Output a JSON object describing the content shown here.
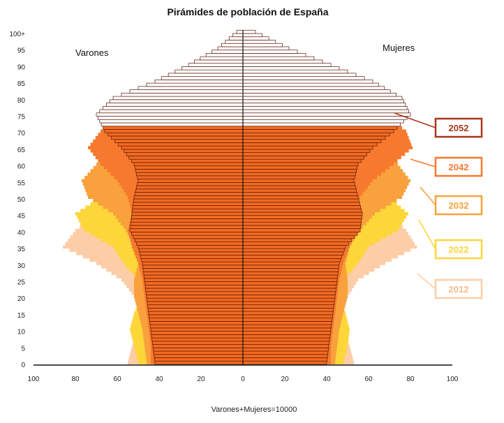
{
  "chart_data": {
    "type": "bar",
    "orientation": "horizontal-population-pyramid",
    "title": "Pirámides de población de España",
    "left_label": "Varones",
    "right_label": "Mujeres",
    "xlabel": "Varones+Mujeres=10000",
    "xlim": [
      -100,
      100
    ],
    "ylim": [
      0,
      100
    ],
    "x_ticks": [
      -100,
      -80,
      -60,
      -40,
      -20,
      0,
      20,
      40,
      60,
      80,
      100
    ],
    "x_tick_labels": [
      "100",
      "80",
      "60",
      "40",
      "20",
      "0",
      "20",
      "40",
      "60",
      "80",
      "100"
    ],
    "y_ticks": [
      0,
      5,
      10,
      15,
      20,
      25,
      30,
      35,
      40,
      45,
      50,
      55,
      60,
      65,
      70,
      75,
      80,
      85,
      90,
      95,
      100
    ],
    "y_tick_labels": [
      "0",
      "5",
      "10",
      "15",
      "20",
      "25",
      "30",
      "35",
      "40",
      "45",
      "50",
      "55",
      "60",
      "65",
      "70",
      "75",
      "80",
      "85",
      "90",
      "95",
      "100+"
    ],
    "age_knots": [
      0,
      5,
      10,
      15,
      20,
      25,
      30,
      35,
      40,
      45,
      50,
      55,
      60,
      65,
      70,
      75,
      80,
      85,
      90,
      95,
      100
    ],
    "series": [
      {
        "name": "2012",
        "color": "#FCCDA6",
        "men": [
          55,
          53,
          50,
          48,
          52,
          58,
          70,
          86,
          80,
          70,
          62,
          58,
          53,
          48,
          42,
          35,
          27,
          18,
          10,
          4,
          1
        ],
        "women": [
          53,
          51,
          48,
          46,
          50,
          55,
          68,
          83,
          78,
          70,
          63,
          59,
          55,
          51,
          47,
          42,
          35,
          25,
          15,
          6,
          2
        ]
      },
      {
        "name": "2022",
        "color": "#FDD63A",
        "men": [
          50,
          52,
          54,
          52,
          48,
          50,
          57,
          62,
          76,
          80,
          68,
          60,
          56,
          50,
          44,
          37,
          29,
          20,
          11,
          5,
          1
        ],
        "women": [
          48,
          50,
          51,
          49,
          46,
          48,
          55,
          60,
          74,
          79,
          70,
          62,
          58,
          54,
          50,
          45,
          38,
          28,
          17,
          8,
          2
        ]
      },
      {
        "name": "2032",
        "color": "#F9A13C",
        "men": [
          46,
          47,
          48,
          50,
          52,
          52,
          50,
          52,
          56,
          62,
          74,
          77,
          70,
          60,
          52,
          42,
          32,
          22,
          13,
          6,
          1
        ],
        "women": [
          44,
          45,
          46,
          48,
          50,
          50,
          49,
          51,
          56,
          63,
          76,
          80,
          74,
          65,
          58,
          50,
          41,
          31,
          20,
          10,
          3
        ]
      },
      {
        "name": "2042",
        "color": "#F7792E",
        "men": [
          44,
          44,
          45,
          46,
          47,
          48,
          50,
          53,
          55,
          53,
          55,
          60,
          68,
          74,
          68,
          55,
          40,
          26,
          15,
          7,
          2
        ],
        "women": [
          42,
          42,
          43,
          44,
          45,
          46,
          48,
          51,
          53,
          53,
          56,
          62,
          72,
          81,
          78,
          68,
          55,
          40,
          25,
          12,
          4
        ]
      },
      {
        "name": "2052",
        "color": "#F26A22",
        "outline_color": "#5a1a08",
        "men": [
          42,
          43,
          44,
          45,
          46,
          47,
          48,
          50,
          54,
          53,
          52,
          50,
          52,
          58,
          66,
          70,
          62,
          42,
          26,
          12,
          3
        ],
        "women": [
          40,
          41,
          42,
          43,
          44,
          45,
          46,
          49,
          56,
          57,
          55,
          53,
          55,
          62,
          72,
          80,
          76,
          62,
          42,
          22,
          6
        ]
      }
    ],
    "legend": {
      "placement": "right",
      "order": [
        "2052",
        "2042",
        "2032",
        "2022",
        "2012"
      ]
    }
  }
}
